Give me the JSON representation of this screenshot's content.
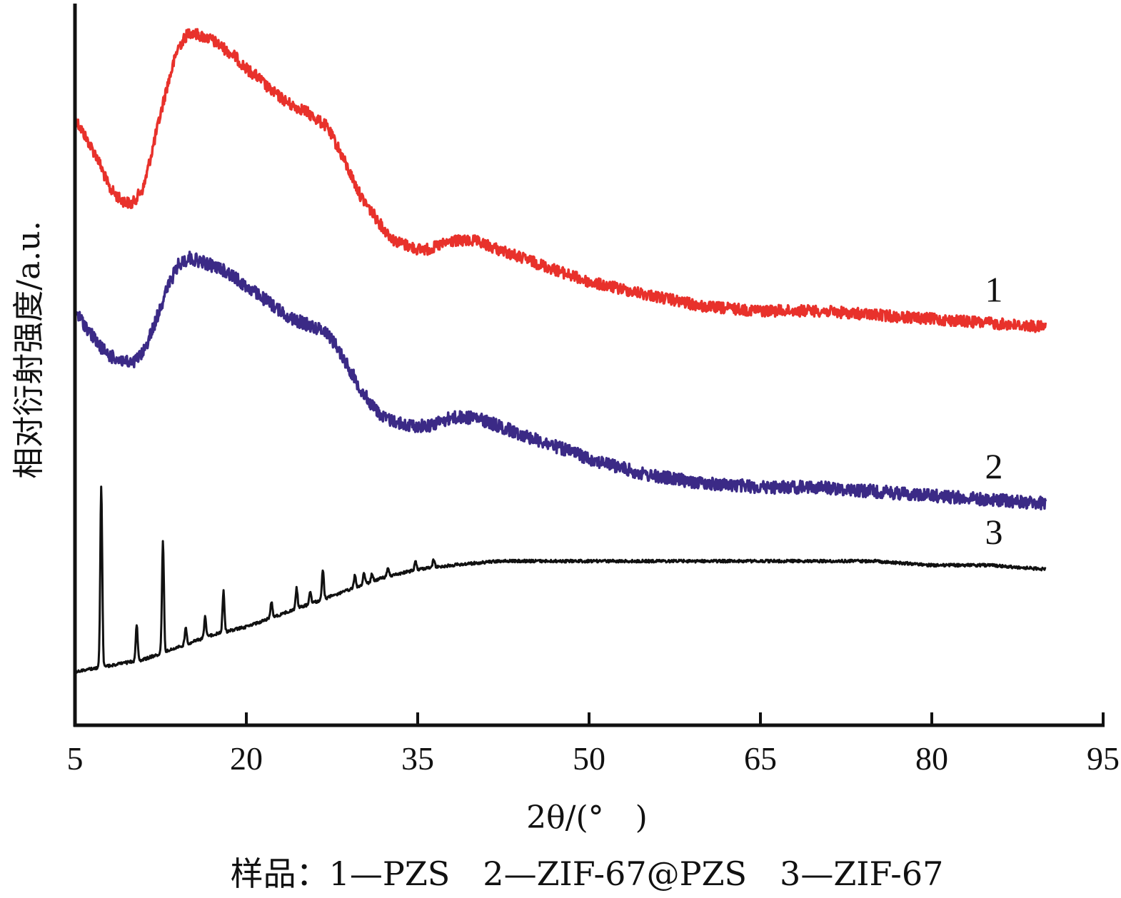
{
  "chart_data": {
    "type": "line",
    "xlabel": "2θ/(°　)",
    "ylabel": "相对衍射强度/a.u.",
    "caption": "样品：1—PZS　2—ZIF-67@PZS　3—ZIF-67",
    "xlim": [
      5,
      95
    ],
    "xticks": [
      "5",
      "20",
      "35",
      "50",
      "65",
      "80",
      "95"
    ],
    "yticks_shown": false,
    "grid": false,
    "colors": {
      "axis": "#111111",
      "series1": "#e8312b",
      "series2": "#3b2a86",
      "series3": "#111111"
    },
    "series": [
      {
        "name": "1",
        "color": "#e8312b",
        "noise": 8,
        "points": [
          [
            5,
            1.35
          ],
          [
            6,
            1.3
          ],
          [
            7,
            1.25
          ],
          [
            8,
            1.18
          ],
          [
            9,
            1.15
          ],
          [
            10,
            1.14
          ],
          [
            11,
            1.18
          ],
          [
            12,
            1.3
          ],
          [
            13,
            1.42
          ],
          [
            14,
            1.52
          ],
          [
            15,
            1.56
          ],
          [
            16,
            1.55
          ],
          [
            17,
            1.54
          ],
          [
            18,
            1.52
          ],
          [
            19,
            1.5
          ],
          [
            20,
            1.47
          ],
          [
            21,
            1.45
          ],
          [
            22,
            1.42
          ],
          [
            23,
            1.4
          ],
          [
            24,
            1.38
          ],
          [
            25,
            1.37
          ],
          [
            26,
            1.35
          ],
          [
            27,
            1.33
          ],
          [
            28,
            1.28
          ],
          [
            29,
            1.22
          ],
          [
            30,
            1.16
          ],
          [
            31,
            1.12
          ],
          [
            32,
            1.08
          ],
          [
            33,
            1.05
          ],
          [
            34,
            1.04
          ],
          [
            35,
            1.03
          ],
          [
            36,
            1.03
          ],
          [
            37,
            1.04
          ],
          [
            38,
            1.05
          ],
          [
            39,
            1.05
          ],
          [
            40,
            1.05
          ],
          [
            41,
            1.04
          ],
          [
            42,
            1.03
          ],
          [
            43,
            1.02
          ],
          [
            44,
            1.01
          ],
          [
            45,
            1.0
          ],
          [
            47,
            0.98
          ],
          [
            50,
            0.95
          ],
          [
            55,
            0.92
          ],
          [
            60,
            0.89
          ],
          [
            65,
            0.88
          ],
          [
            70,
            0.88
          ],
          [
            75,
            0.87
          ],
          [
            80,
            0.86
          ],
          [
            85,
            0.85
          ],
          [
            90,
            0.84
          ]
        ]
      },
      {
        "name": "2",
        "color": "#3b2a86",
        "noise": 9,
        "points": [
          [
            5,
            0.88
          ],
          [
            6,
            0.84
          ],
          [
            7,
            0.8
          ],
          [
            8,
            0.77
          ],
          [
            9,
            0.76
          ],
          [
            10,
            0.75
          ],
          [
            11,
            0.78
          ],
          [
            12,
            0.85
          ],
          [
            13,
            0.93
          ],
          [
            14,
            0.99
          ],
          [
            15,
            1.01
          ],
          [
            16,
            1.0
          ],
          [
            17,
            0.99
          ],
          [
            18,
            0.98
          ],
          [
            19,
            0.96
          ],
          [
            20,
            0.94
          ],
          [
            21,
            0.92
          ],
          [
            22,
            0.9
          ],
          [
            23,
            0.88
          ],
          [
            24,
            0.86
          ],
          [
            25,
            0.85
          ],
          [
            26,
            0.84
          ],
          [
            27,
            0.83
          ],
          [
            28,
            0.79
          ],
          [
            29,
            0.74
          ],
          [
            30,
            0.69
          ],
          [
            31,
            0.65
          ],
          [
            32,
            0.62
          ],
          [
            33,
            0.61
          ],
          [
            34,
            0.6
          ],
          [
            35,
            0.6
          ],
          [
            36,
            0.6
          ],
          [
            37,
            0.61
          ],
          [
            38,
            0.62
          ],
          [
            39,
            0.62
          ],
          [
            40,
            0.62
          ],
          [
            41,
            0.61
          ],
          [
            42,
            0.6
          ],
          [
            43,
            0.59
          ],
          [
            44,
            0.58
          ],
          [
            45,
            0.57
          ],
          [
            47,
            0.55
          ],
          [
            50,
            0.52
          ],
          [
            55,
            0.48
          ],
          [
            60,
            0.46
          ],
          [
            65,
            0.45
          ],
          [
            70,
            0.45
          ],
          [
            75,
            0.44
          ],
          [
            80,
            0.43
          ],
          [
            85,
            0.42
          ],
          [
            90,
            0.41
          ]
        ]
      },
      {
        "name": "3",
        "color": "#111111",
        "noise": 2,
        "points": [
          [
            5,
            0.0
          ],
          [
            7,
            0.01
          ],
          [
            9,
            0.02
          ],
          [
            11,
            0.03
          ],
          [
            13,
            0.05
          ],
          [
            15,
            0.07
          ],
          [
            17,
            0.09
          ],
          [
            20,
            0.11
          ],
          [
            23,
            0.14
          ],
          [
            26,
            0.17
          ],
          [
            29,
            0.2
          ],
          [
            32,
            0.23
          ],
          [
            35,
            0.25
          ],
          [
            38,
            0.26
          ],
          [
            42,
            0.27
          ],
          [
            46,
            0.27
          ],
          [
            50,
            0.27
          ],
          [
            55,
            0.27
          ],
          [
            60,
            0.27
          ],
          [
            65,
            0.27
          ],
          [
            70,
            0.27
          ],
          [
            75,
            0.27
          ],
          [
            80,
            0.26
          ],
          [
            85,
            0.26
          ],
          [
            90,
            0.25
          ]
        ],
        "peaks": [
          [
            7.3,
            0.44
          ],
          [
            10.4,
            0.09
          ],
          [
            12.7,
            0.27
          ],
          [
            14.7,
            0.04
          ],
          [
            16.4,
            0.05
          ],
          [
            18.0,
            0.1
          ],
          [
            22.2,
            0.04
          ],
          [
            24.4,
            0.05
          ],
          [
            25.6,
            0.03
          ],
          [
            26.7,
            0.07
          ],
          [
            29.5,
            0.03
          ],
          [
            30.3,
            0.03
          ],
          [
            31.0,
            0.02
          ],
          [
            32.4,
            0.02
          ],
          [
            34.8,
            0.02
          ],
          [
            36.4,
            0.02
          ]
        ]
      }
    ],
    "ylim": [
      -0.13,
      1.62
    ]
  }
}
